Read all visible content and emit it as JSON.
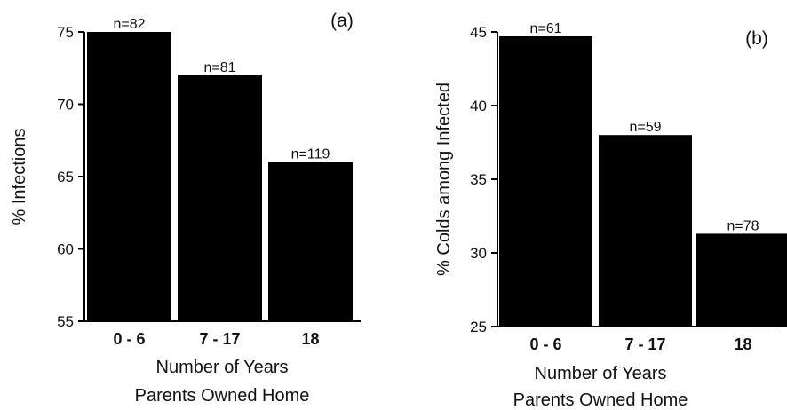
{
  "chart_data": [
    {
      "type": "bar",
      "panel_label": "(a)",
      "categories": [
        "0 - 6",
        "7 - 17",
        "18"
      ],
      "values": [
        75,
        72,
        66
      ],
      "data_labels": [
        "n=82",
        "n=81",
        "n=119"
      ],
      "ylabel": "% Infections",
      "xlabel_lines": [
        "Number of Years",
        "Parents Owned Home"
      ],
      "ylim": [
        55,
        75
      ],
      "yticks": [
        55,
        60,
        65,
        70,
        75
      ],
      "grid": false,
      "bar_color": "#000000"
    },
    {
      "type": "bar",
      "panel_label": "(b)",
      "categories": [
        "0 - 6",
        "7 - 17",
        "18"
      ],
      "values": [
        44.7,
        38,
        31.3
      ],
      "data_labels": [
        "n=61",
        "n=59",
        "n=78"
      ],
      "ylabel": "% Colds among Infected",
      "xlabel_lines": [
        "Number of Years",
        "Parents Owned Home"
      ],
      "ylim": [
        25,
        45
      ],
      "yticks": [
        25,
        30,
        35,
        40,
        45
      ],
      "grid": false,
      "bar_color": "#000000"
    }
  ]
}
